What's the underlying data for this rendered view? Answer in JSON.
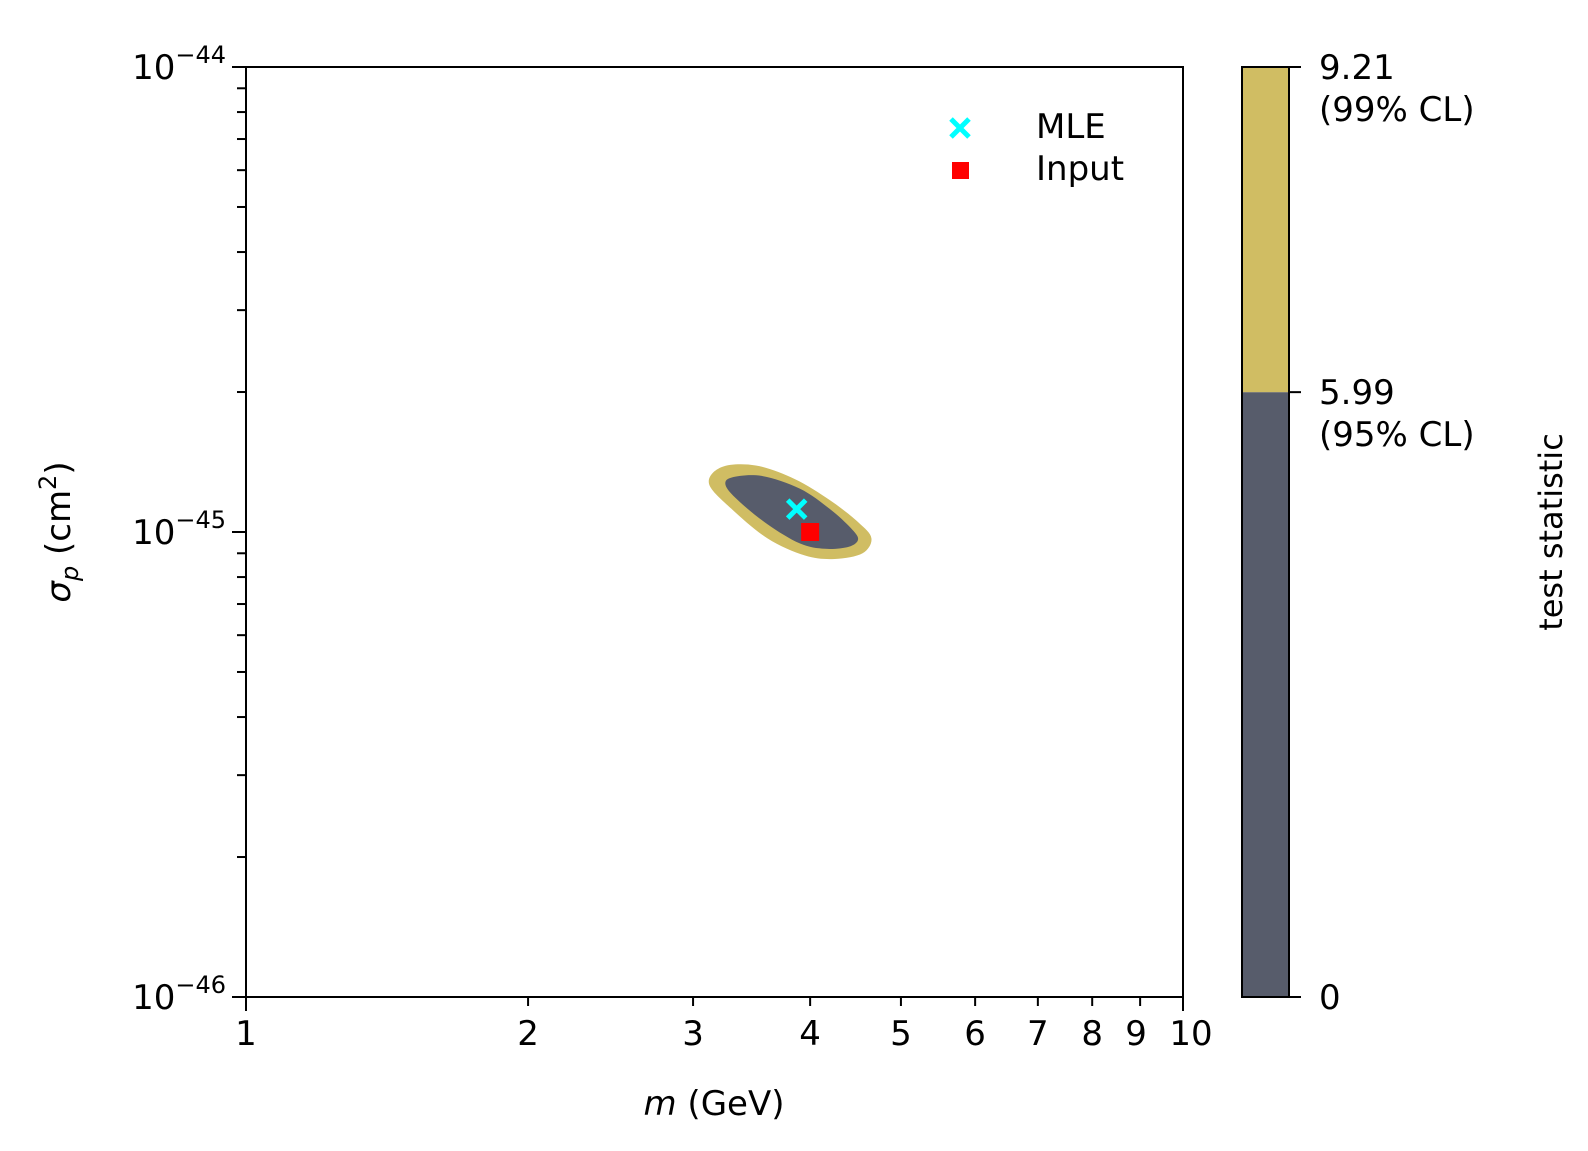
{
  "chart_data": {
    "type": "contour",
    "xlabel": {
      "italic": "m",
      "rest": " (GeV)"
    },
    "ylabel": {
      "sym": "σ",
      "sub": "p",
      "unit": " (cm",
      "sup": "2",
      "close": ")"
    },
    "x_scale": "log",
    "y_scale": "log",
    "xlim": [
      1,
      10
    ],
    "ylim": [
      1e-46,
      1e-44
    ],
    "x_ticks": [
      {
        "value": 1,
        "label": "1"
      },
      {
        "value": 2,
        "label": "2"
      },
      {
        "value": 3,
        "label": "3"
      },
      {
        "value": 4,
        "label": "4"
      },
      {
        "value": 5,
        "label": "5"
      },
      {
        "value": 6,
        "label": "6"
      },
      {
        "value": 7,
        "label": "7"
      },
      {
        "value": 8,
        "label": "8"
      },
      {
        "value": 9,
        "label": "9"
      },
      {
        "value": 10,
        "label": "10"
      }
    ],
    "y_ticks": [
      {
        "value": 1e-46,
        "base": "10",
        "exp": "−46"
      },
      {
        "value": 1e-45,
        "base": "10",
        "exp": "−45"
      },
      {
        "value": 1e-44,
        "base": "10",
        "exp": "−44"
      }
    ],
    "grid": false,
    "contours": [
      {
        "level_range": [
          5.99,
          9.21
        ],
        "color": "#d0bd63",
        "center": [
          3.95,
          1.1e-45
        ],
        "points": [
          [
            3.22,
            1.38e-45
          ],
          [
            3.5,
            1.39e-45
          ],
          [
            3.85,
            1.3e-45
          ],
          [
            4.2,
            1.17e-45
          ],
          [
            4.5,
            1.05e-45
          ],
          [
            4.65,
            9.7e-46
          ],
          [
            4.55,
            9e-46
          ],
          [
            4.25,
            8.75e-46
          ],
          [
            3.95,
            8.9e-46
          ],
          [
            3.6,
            9.7e-46
          ],
          [
            3.3,
            1.12e-45
          ],
          [
            3.12,
            1.27e-45
          ]
        ]
      },
      {
        "level_range": [
          0,
          5.99
        ],
        "color": "#575c6b",
        "center": [
          3.95,
          1.1e-45
        ],
        "points": [
          [
            3.3,
            1.31e-45
          ],
          [
            3.55,
            1.32e-45
          ],
          [
            3.9,
            1.24e-45
          ],
          [
            4.2,
            1.12e-45
          ],
          [
            4.42,
            1.02e-45
          ],
          [
            4.5,
            9.65e-46
          ],
          [
            4.4,
            9.3e-46
          ],
          [
            4.15,
            9.2e-46
          ],
          [
            3.9,
            9.45e-46
          ],
          [
            3.6,
            1.04e-45
          ],
          [
            3.35,
            1.17e-45
          ],
          [
            3.25,
            1.26e-45
          ]
        ]
      }
    ],
    "points": [
      {
        "name": "MLE",
        "x": 3.87,
        "y": 1.12e-45,
        "color": "#00ffff",
        "marker": "x"
      },
      {
        "name": "Input",
        "x": 4.0,
        "y": 1e-45,
        "color": "#ff0000",
        "marker": "square"
      }
    ],
    "legend": {
      "placement": "top-right",
      "entries": [
        {
          "label": "MLE",
          "color": "#00ffff",
          "marker": "x"
        },
        {
          "label": "Input",
          "color": "#ff0000",
          "marker": "square"
        }
      ]
    },
    "colorbar": {
      "label": "test statistic",
      "segments": [
        {
          "from": 0,
          "to": 5.99,
          "color": "#575c6b"
        },
        {
          "from": 5.99,
          "to": 9.21,
          "color": "#d0bd63"
        }
      ],
      "ticks": [
        {
          "value": 0,
          "line1": "0",
          "line2": ""
        },
        {
          "value": 5.99,
          "line1": "5.99",
          "line2": "(95% CL)"
        },
        {
          "value": 9.21,
          "line1": "9.21",
          "line2": "(99% CL)"
        }
      ]
    }
  }
}
